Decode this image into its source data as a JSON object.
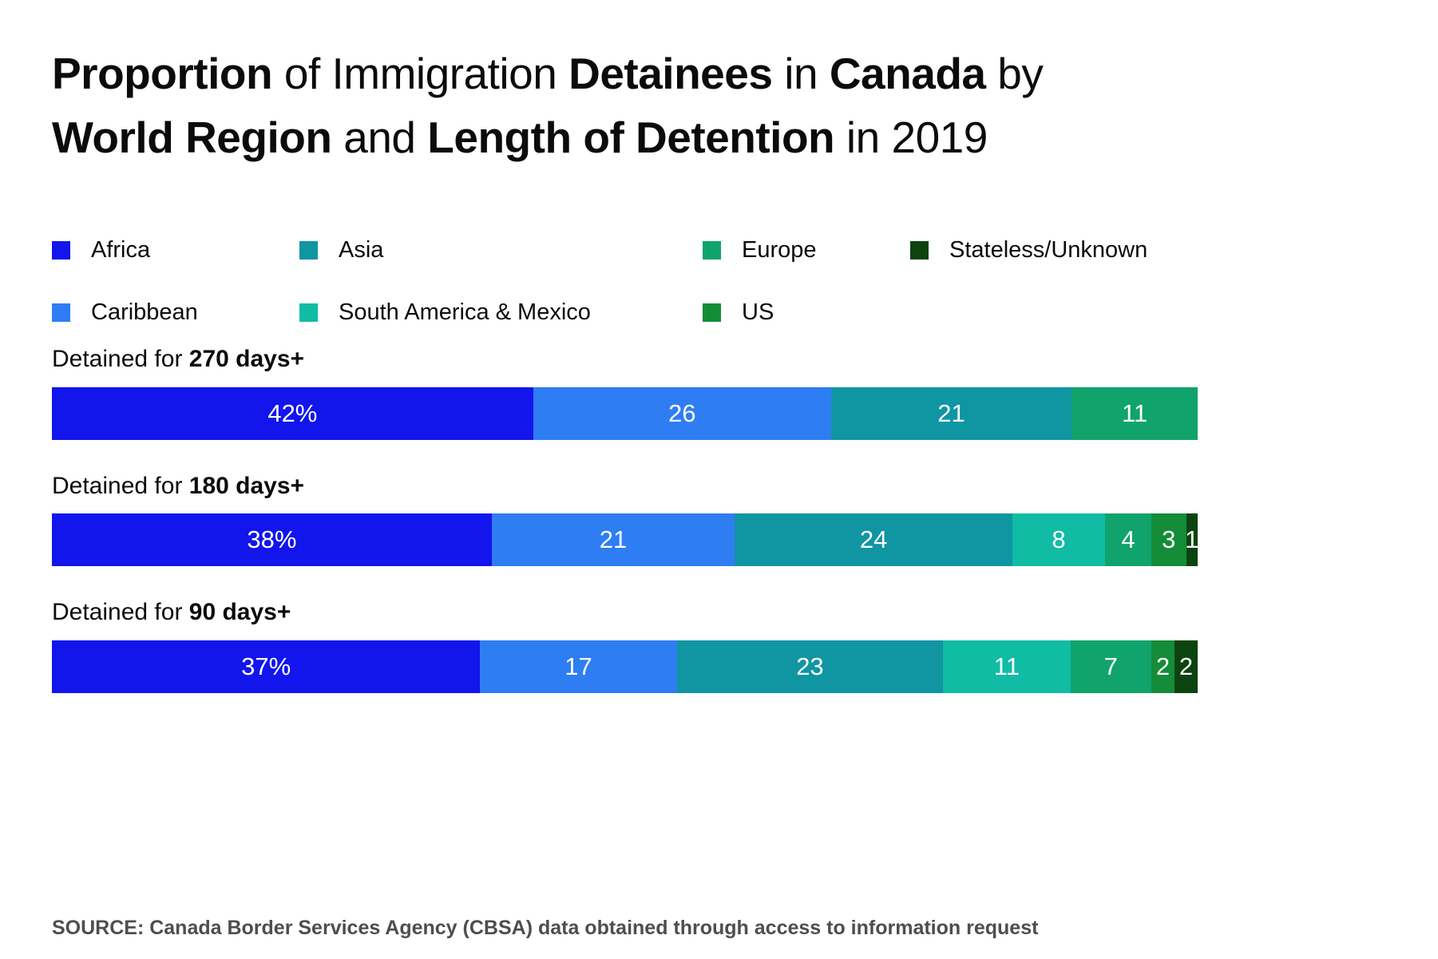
{
  "title": {
    "full": "Proportion of Immigration Detainees in Canada by World Region and Length of Detention in 2019",
    "lines": [
      [
        {
          "t": "Proportion",
          "b": true
        },
        {
          "t": " of Immigration ",
          "b": false
        },
        {
          "t": "Detainees",
          "b": true
        },
        {
          "t": " in ",
          "b": false
        },
        {
          "t": "Canada",
          "b": true
        },
        {
          "t": " by",
          "b": false
        }
      ],
      [
        {
          "t": "World Region",
          "b": true
        },
        {
          "t": " and ",
          "b": false
        },
        {
          "t": "Length of Detention",
          "b": true
        },
        {
          "t": " in 2019",
          "b": false
        }
      ]
    ]
  },
  "legend": {
    "rows": [
      [
        {
          "label": "Africa",
          "color": "#1215EC"
        },
        {
          "label": "Asia",
          "color": "#1095A3"
        },
        {
          "label": "Europe",
          "color": "#10A36C"
        },
        {
          "label": "Stateless/Unknown",
          "color": "#0C430F"
        }
      ],
      [
        {
          "label": "Caribbean",
          "color": "#2F7DF3"
        },
        {
          "label": "South America & Mexico",
          "color": "#10BCA4"
        },
        {
          "label": "US",
          "color": "#148C38"
        }
      ]
    ]
  },
  "bars": [
    {
      "label_prefix": "Detained for ",
      "label_strong": "270 days+",
      "segments": [
        {
          "region": "Africa",
          "value": 42,
          "label": "42%"
        },
        {
          "region": "Caribbean",
          "value": 26,
          "label": "26"
        },
        {
          "region": "Asia",
          "value": 21,
          "label": "21"
        },
        {
          "region": "Europe",
          "value": 11,
          "label": "11"
        }
      ]
    },
    {
      "label_prefix": "Detained for ",
      "label_strong": "180 days+",
      "segments": [
        {
          "region": "Africa",
          "value": 38,
          "label": "38%"
        },
        {
          "region": "Caribbean",
          "value": 21,
          "label": "21"
        },
        {
          "region": "Asia",
          "value": 24,
          "label": "24"
        },
        {
          "region": "South America & Mexico",
          "value": 8,
          "label": "8"
        },
        {
          "region": "Europe",
          "value": 4,
          "label": "4"
        },
        {
          "region": "US",
          "value": 3,
          "label": "3"
        },
        {
          "region": "Stateless/Unknown",
          "value": 1,
          "label": "1"
        }
      ]
    },
    {
      "label_prefix": "Detained for ",
      "label_strong": "90 days+",
      "segments": [
        {
          "region": "Africa",
          "value": 37,
          "label": "37%"
        },
        {
          "region": "Caribbean",
          "value": 17,
          "label": "17"
        },
        {
          "region": "Asia",
          "value": 23,
          "label": "23"
        },
        {
          "region": "South America & Mexico",
          "value": 11,
          "label": "11"
        },
        {
          "region": "Europe",
          "value": 7,
          "label": "7"
        },
        {
          "region": "US",
          "value": 2,
          "label": "2"
        },
        {
          "region": "Stateless/Unknown",
          "value": 2,
          "label": "2"
        }
      ]
    }
  ],
  "chart_data": {
    "type": "bar",
    "stacked": true,
    "orientation": "horizontal",
    "unit": "percent",
    "title": "Proportion of Immigration Detainees in Canada by World Region and Length of Detention in 2019",
    "categories": [
      "Detained for 270 days+",
      "Detained for 180 days+",
      "Detained for 90 days+"
    ],
    "series": [
      {
        "name": "Africa",
        "values": [
          42,
          38,
          37
        ]
      },
      {
        "name": "Caribbean",
        "values": [
          26,
          21,
          17
        ]
      },
      {
        "name": "Asia",
        "values": [
          21,
          24,
          23
        ]
      },
      {
        "name": "South America & Mexico",
        "values": [
          0,
          8,
          11
        ]
      },
      {
        "name": "Europe",
        "values": [
          11,
          4,
          7
        ]
      },
      {
        "name": "US",
        "values": [
          0,
          3,
          2
        ]
      },
      {
        "name": "Stateless/Unknown",
        "values": [
          0,
          1,
          2
        ]
      }
    ],
    "value_labels": true,
    "legend_position": "top",
    "grid": false,
    "xlim": [
      0,
      100
    ]
  },
  "source": "SOURCE: Canada Border Services Agency (CBSA) data obtained through access to information request"
}
